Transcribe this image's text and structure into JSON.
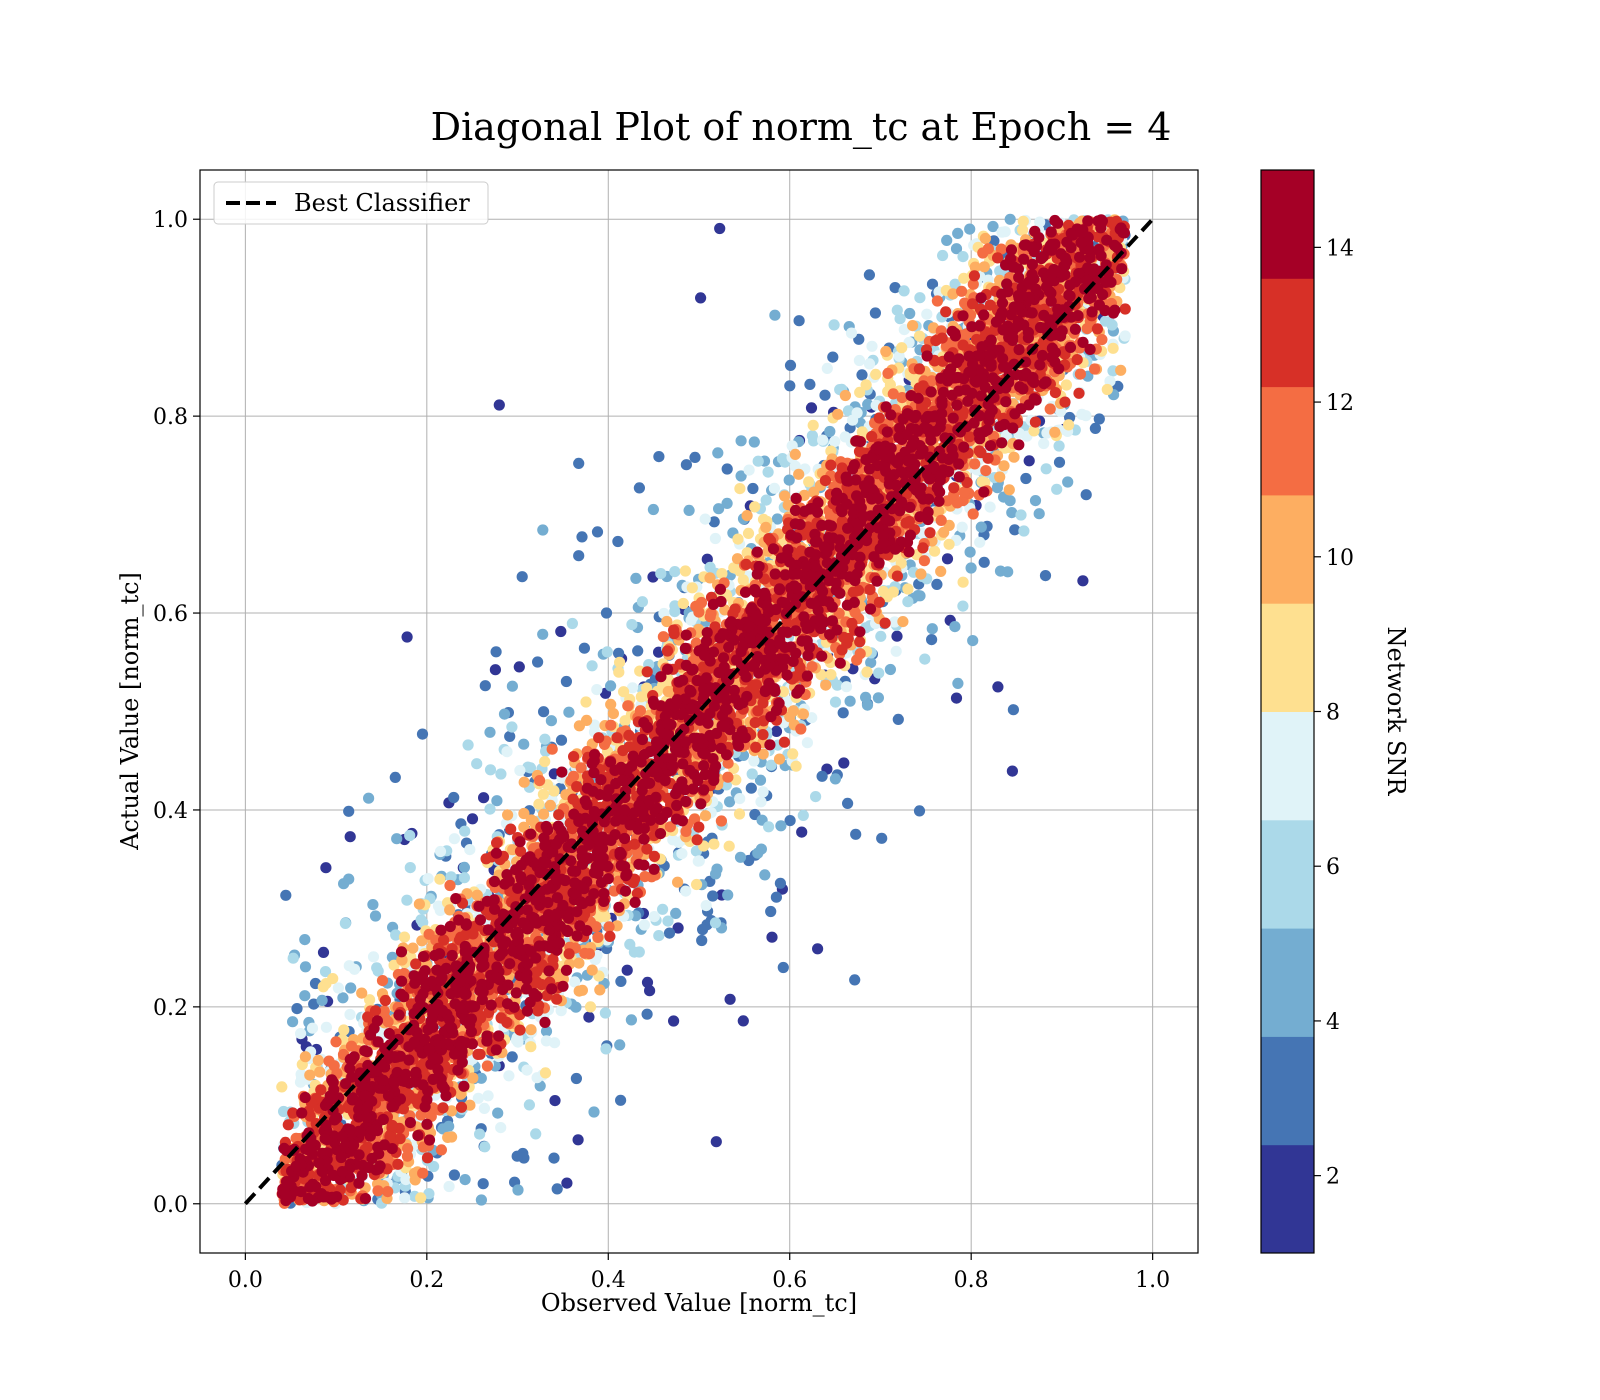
{
  "chart_data": {
    "type": "scatter",
    "title": "Diagonal Plot of norm_tc at Epoch = 4",
    "xlabel": "Observed Value [norm_tc]",
    "ylabel": "Actual Value [norm_tc]",
    "xlim": [
      -0.05,
      1.05
    ],
    "ylim": [
      -0.05,
      1.05
    ],
    "xticks": [
      "0.0",
      "0.2",
      "0.4",
      "0.6",
      "0.8",
      "1.0"
    ],
    "yticks": [
      "0.0",
      "0.2",
      "0.4",
      "0.6",
      "0.8",
      "1.0"
    ],
    "grid": true,
    "legend": {
      "position": "top-left",
      "entries": [
        {
          "label": "Best Classifier",
          "style": "dashed",
          "color": "#000000"
        }
      ]
    },
    "reference_line": {
      "name": "Best Classifier",
      "x": [
        0.0,
        1.0
      ],
      "y": [
        0.0,
        1.0
      ]
    },
    "colorbar": {
      "label": "Network SNR",
      "range": [
        1,
        15
      ],
      "ticks": [
        "2",
        "4",
        "6",
        "8",
        "10",
        "12",
        "14"
      ],
      "colors": [
        "#313695",
        "#4575b4",
        "#74add1",
        "#abd9e9",
        "#e0f3f8",
        "#fee090",
        "#fdae61",
        "#f46d43",
        "#d73027",
        "#a50026"
      ]
    },
    "point_distribution": {
      "description_of_data": "dense band along diagonal with high SNR (~14); scatter of low SNR points spreading off-diagonal",
      "x_range_min": 0.05,
      "x_range_max": 0.96,
      "y_range": [
        0.0,
        1.0
      ]
    }
  }
}
